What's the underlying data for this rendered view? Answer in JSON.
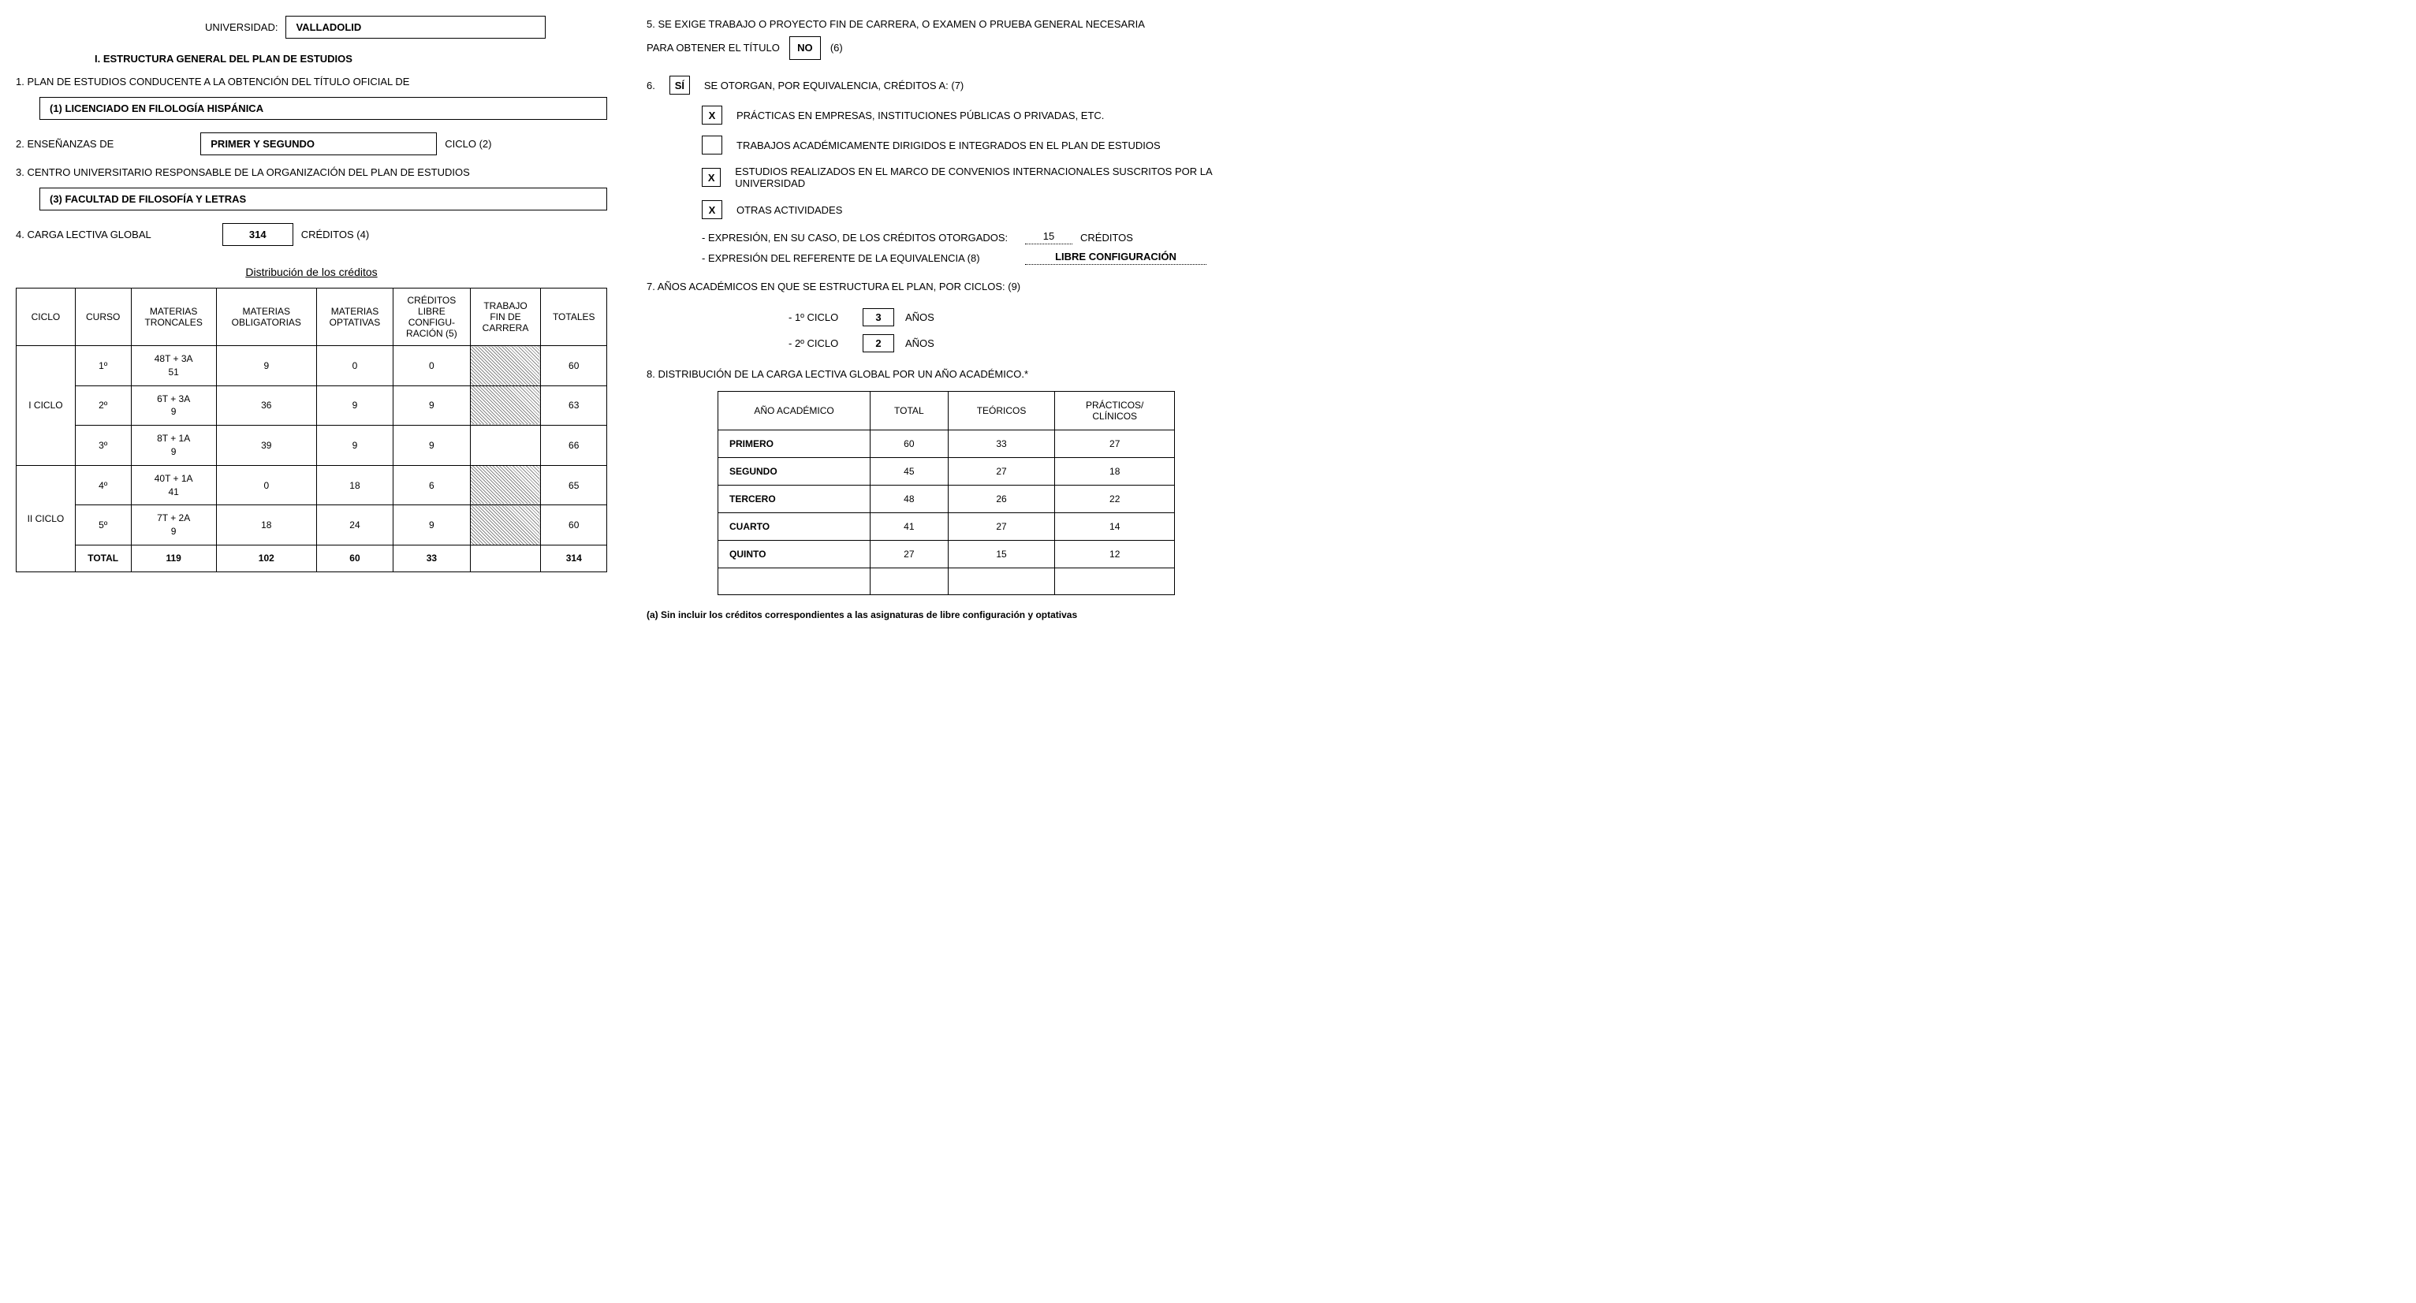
{
  "left": {
    "universidad_label": "UNIVERSIDAD:",
    "universidad_value": "VALLADOLID",
    "section_I": "I. ESTRUCTURA GENERAL DEL PLAN DE ESTUDIOS",
    "q1": "1. PLAN DE ESTUDIOS CONDUCENTE A LA OBTENCIÓN DEL TÍTULO OFICIAL DE",
    "q1_value": "(1) LICENCIADO EN FILOLOGÍA HISPÁNICA",
    "q2_label": "2. ENSEÑANZAS DE",
    "q2_value": "PRIMER Y SEGUNDO",
    "q2_suffix": "CICLO (2)",
    "q3": "3. CENTRO UNIVERSITARIO RESPONSABLE DE LA ORGANIZACIÓN DEL PLAN DE ESTUDIOS",
    "q3_value": "(3) FACULTAD DE FILOSOFÍA Y LETRAS",
    "q4_label": "4. CARGA LECTIVA GLOBAL",
    "q4_value": "314",
    "q4_suffix": "CRÉDITOS (4)",
    "table_title": "Distribución de los créditos",
    "table1": {
      "headers": [
        "CICLO",
        "CURSO",
        "MATERIAS TRONCALES",
        "MATERIAS OBLIGATORIAS",
        "MATERIAS OPTATIVAS",
        "CRÉDITOS LIBRE CONFIGU-RACIÓN (5)",
        "TRABAJO FIN DE CARRERA",
        "TOTALES"
      ],
      "groups": [
        {
          "ciclo": "I CICLO",
          "rows": [
            {
              "curso": "1º",
              "troncal_top": "48T + 3A",
              "troncal_bot": "51",
              "oblig": "9",
              "opt": "0",
              "libre": "0",
              "tfc_hatched": true,
              "total": "60"
            },
            {
              "curso": "2º",
              "troncal_top": "6T + 3A",
              "troncal_bot": "9",
              "oblig": "36",
              "opt": "9",
              "libre": "9",
              "tfc_hatched": true,
              "total": "63"
            },
            {
              "curso": "3º",
              "troncal_top": "8T + 1A",
              "troncal_bot": "9",
              "oblig": "39",
              "opt": "9",
              "libre": "9",
              "tfc_hatched": false,
              "total": "66"
            }
          ]
        },
        {
          "ciclo": "II CICLO",
          "rows": [
            {
              "curso": "4º",
              "troncal_top": "40T + 1A",
              "troncal_bot": "41",
              "oblig": "0",
              "opt": "18",
              "libre": "6",
              "tfc_hatched": true,
              "total": "65"
            },
            {
              "curso": "5º",
              "troncal_top": "7T + 2A",
              "troncal_bot": "9",
              "oblig": "18",
              "opt": "24",
              "libre": "9",
              "tfc_hatched": true,
              "total": "60"
            },
            {
              "curso": "TOTAL",
              "troncal_top": "",
              "troncal_bot": "119",
              "oblig": "102",
              "opt": "60",
              "libre": "33",
              "tfc_hatched": false,
              "total": "314",
              "bold": true
            }
          ]
        }
      ]
    }
  },
  "right": {
    "q5_a": "5. SE EXIGE TRABAJO O PROYECTO FIN DE CARRERA, O EXAMEN O PRUEBA GENERAL NECESARIA",
    "q5_b": "PARA OBTENER EL TÍTULO",
    "q5_box": "NO",
    "q5_suffix": "(6)",
    "q6_prefix": "6.",
    "q6_box": "SÍ",
    "q6_text": "SE OTORGAN, POR EQUIVALENCIA, CRÉDITOS A: (7)",
    "q6_items": [
      {
        "checked": "X",
        "text": "PRÁCTICAS EN EMPRESAS, INSTITUCIONES PÚBLICAS O PRIVADAS, ETC."
      },
      {
        "checked": "",
        "text": "TRABAJOS ACADÉMICAMENTE DIRIGIDOS E INTEGRADOS EN EL PLAN DE ESTUDIOS"
      },
      {
        "checked": "X",
        "text": "ESTUDIOS REALIZADOS EN EL MARCO DE CONVENIOS INTERNACIONALES SUSCRITOS POR LA   UNIVERSIDAD"
      },
      {
        "checked": "X",
        "text": "OTRAS ACTIVIDADES"
      }
    ],
    "exp1_label": "- EXPRESIÓN, EN SU CASO, DE LOS CRÉDITOS OTORGADOS:",
    "exp1_value": "15",
    "exp1_suffix": "CRÉDITOS",
    "exp2_label": "- EXPRESIÓN DEL REFERENTE DE LA EQUIVALENCIA (8)",
    "exp2_value": "LIBRE CONFIGURACIÓN",
    "q7": "7. AÑOS ACADÉMICOS EN QUE SE ESTRUCTURA EL PLAN, POR CICLOS: (9)",
    "years": [
      {
        "label": "- 1º CICLO",
        "value": "3",
        "suffix": "AÑOS"
      },
      {
        "label": "- 2º CICLO",
        "value": "2",
        "suffix": "AÑOS"
      }
    ],
    "q8": "8. DISTRIBUCIÓN DE LA CARGA LECTIVA GLOBAL POR UN AÑO ACADÉMICO.*",
    "table2": {
      "headers": [
        "AÑO ACADÉMICO",
        "TOTAL",
        "TEÓRICOS",
        "PRÁCTICOS/ CLÍNICOS"
      ],
      "rows": [
        {
          "anio": "PRIMERO",
          "total": "60",
          "teo": "33",
          "prac": "27"
        },
        {
          "anio": "SEGUNDO",
          "total": "45",
          "teo": "27",
          "prac": "18"
        },
        {
          "anio": "TERCERO",
          "total": "48",
          "teo": "26",
          "prac": "22"
        },
        {
          "anio": "CUARTO",
          "total": "41",
          "teo": "27",
          "prac": "14"
        },
        {
          "anio": "QUINTO",
          "total": "27",
          "teo": "15",
          "prac": "12"
        }
      ]
    },
    "footnote": "(a) Sin incluir los créditos correspondientes a las asignaturas de libre configuración y optativas"
  }
}
